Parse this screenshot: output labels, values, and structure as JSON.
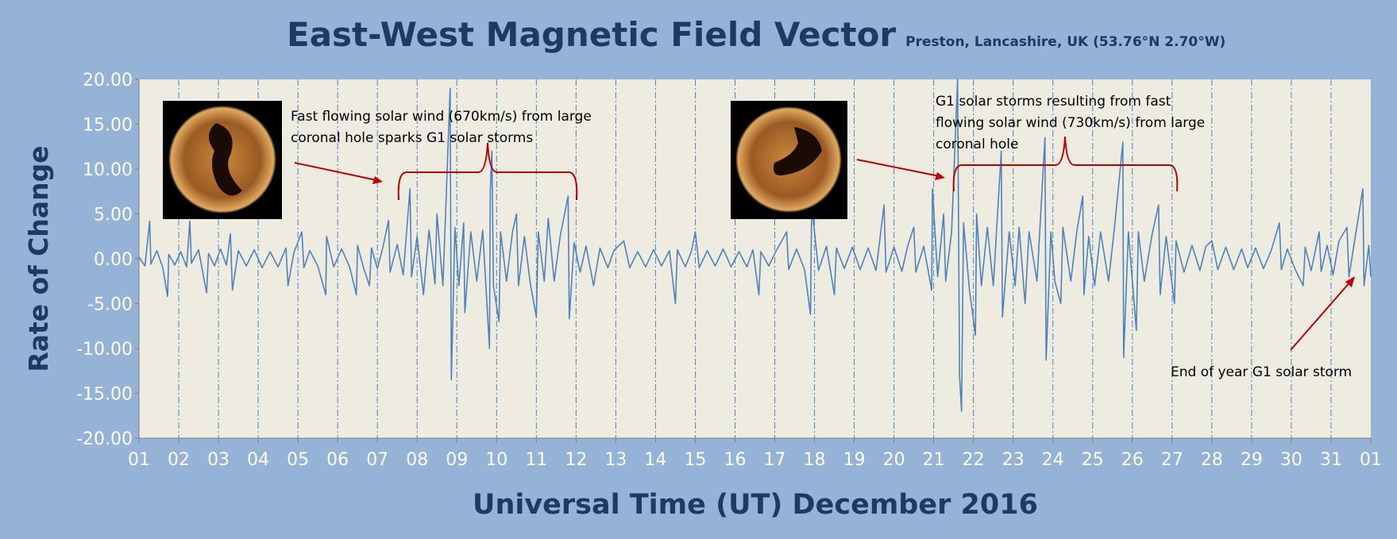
{
  "chart_data": {
    "type": "line",
    "title": "East-West Magnetic Field Vector",
    "subtitle": "Preston, Lancashire, UK  (53.76°N 2.70°W)",
    "x_label": "Universal Time (UT) December 2016",
    "y_label": "Rate of Change",
    "grid": true,
    "xlim": [
      1,
      32
    ],
    "ylim": [
      -20,
      20
    ],
    "xticks": [
      {
        "value": 1,
        "label": "01"
      },
      {
        "value": 2,
        "label": "02"
      },
      {
        "value": 3,
        "label": "03"
      },
      {
        "value": 4,
        "label": "04"
      },
      {
        "value": 5,
        "label": "05"
      },
      {
        "value": 6,
        "label": "06"
      },
      {
        "value": 7,
        "label": "07"
      },
      {
        "value": 8,
        "label": "08"
      },
      {
        "value": 9,
        "label": "09"
      },
      {
        "value": 10,
        "label": "10"
      },
      {
        "value": 11,
        "label": "11"
      },
      {
        "value": 12,
        "label": "12"
      },
      {
        "value": 13,
        "label": "13"
      },
      {
        "value": 14,
        "label": "14"
      },
      {
        "value": 15,
        "label": "15"
      },
      {
        "value": 16,
        "label": "16"
      },
      {
        "value": 17,
        "label": "17"
      },
      {
        "value": 18,
        "label": "18"
      },
      {
        "value": 19,
        "label": "19"
      },
      {
        "value": 20,
        "label": "20"
      },
      {
        "value": 21,
        "label": "21"
      },
      {
        "value": 22,
        "label": "22"
      },
      {
        "value": 23,
        "label": "23"
      },
      {
        "value": 24,
        "label": "24"
      },
      {
        "value": 25,
        "label": "25"
      },
      {
        "value": 26,
        "label": "26"
      },
      {
        "value": 27,
        "label": "27"
      },
      {
        "value": 28,
        "label": "28"
      },
      {
        "value": 29,
        "label": "29"
      },
      {
        "value": 30,
        "label": "30"
      },
      {
        "value": 31,
        "label": "31"
      },
      {
        "value": 32,
        "label": "01"
      }
    ],
    "yticks": [
      {
        "value": 20,
        "label": "20.00"
      },
      {
        "value": 15,
        "label": "15.00"
      },
      {
        "value": 10,
        "label": "10.00"
      },
      {
        "value": 5,
        "label": "5.00"
      },
      {
        "value": 0,
        "label": "0.00"
      },
      {
        "value": -5,
        "label": "-5.00"
      },
      {
        "value": -10,
        "label": "-10.00"
      },
      {
        "value": -15,
        "label": "-15.00"
      },
      {
        "value": -20,
        "label": "-20.00"
      }
    ],
    "color": "#4f81bd",
    "x": [
      1.0,
      1.15,
      1.27,
      1.3,
      1.45,
      1.6,
      1.72,
      1.75,
      1.9,
      2.05,
      2.2,
      2.28,
      2.32,
      2.5,
      2.7,
      2.75,
      2.9,
      3.05,
      3.2,
      3.3,
      3.35,
      3.5,
      3.7,
      3.9,
      4.1,
      4.3,
      4.5,
      4.7,
      4.75,
      4.9,
      5.1,
      5.15,
      5.3,
      5.5,
      5.7,
      5.72,
      5.9,
      6.1,
      6.3,
      6.47,
      6.5,
      6.65,
      6.8,
      6.85,
      7.0,
      7.15,
      7.28,
      7.32,
      7.5,
      7.65,
      7.82,
      7.86,
      8.0,
      8.16,
      8.3,
      8.45,
      8.5,
      8.65,
      8.83,
      8.86,
      8.95,
      9.05,
      9.17,
      9.2,
      9.35,
      9.5,
      9.65,
      9.82,
      9.84,
      9.88,
      9.92,
      10.06,
      10.1,
      10.25,
      10.4,
      10.5,
      10.55,
      10.7,
      10.85,
      11.0,
      11.05,
      11.2,
      11.3,
      11.45,
      11.6,
      11.8,
      11.83,
      11.95,
      12.1,
      12.25,
      12.44,
      12.6,
      12.8,
      12.95,
      13.2,
      13.35,
      13.55,
      13.75,
      13.95,
      14.15,
      14.35,
      14.5,
      14.55,
      14.75,
      14.9,
      15.0,
      15.1,
      15.3,
      15.5,
      15.7,
      15.9,
      16.1,
      16.3,
      16.45,
      16.6,
      16.65,
      16.85,
      17.05,
      17.3,
      17.35,
      17.55,
      17.75,
      17.9,
      17.93,
      18.1,
      18.3,
      18.5,
      18.55,
      18.75,
      18.95,
      19.15,
      19.35,
      19.55,
      19.75,
      19.8,
      20.0,
      20.2,
      20.35,
      20.5,
      20.55,
      20.75,
      20.95,
      20.97,
      21.1,
      21.25,
      21.3,
      21.45,
      21.6,
      21.65,
      21.7,
      21.75,
      21.9,
      22.05,
      22.08,
      22.2,
      22.35,
      22.5,
      22.7,
      22.73,
      22.9,
      23.05,
      23.15,
      23.3,
      23.4,
      23.6,
      23.8,
      23.83,
      23.95,
      24.05,
      24.2,
      24.25,
      24.45,
      24.6,
      24.75,
      24.78,
      24.9,
      25.05,
      25.2,
      25.4,
      25.55,
      25.76,
      25.78,
      25.9,
      26.1,
      26.15,
      26.3,
      26.5,
      26.66,
      26.7,
      26.85,
      27.06,
      27.1,
      27.3,
      27.5,
      27.7,
      27.85,
      28.0,
      28.15,
      28.35,
      28.55,
      28.75,
      28.9,
      29.1,
      29.3,
      29.5,
      29.7,
      29.75,
      29.9,
      30.1,
      30.3,
      30.35,
      30.5,
      30.7,
      30.75,
      30.9,
      31.05,
      31.2,
      31.4,
      31.45,
      31.6,
      31.8,
      31.83,
      31.95,
      32.0
    ],
    "values": [
      0.2,
      -0.8,
      4.2,
      -0.6,
      0.9,
      -1.0,
      -4.2,
      0.5,
      -0.7,
      0.8,
      -0.9,
      4.2,
      -0.5,
      1.0,
      -3.8,
      0.6,
      -0.8,
      1.1,
      -0.7,
      2.8,
      -3.5,
      0.9,
      -0.8,
      1.0,
      -1.0,
      0.8,
      -0.9,
      1.2,
      -3.0,
      0.7,
      3.0,
      -1.0,
      0.9,
      -0.8,
      -4.0,
      2.5,
      -0.9,
      1.1,
      -0.9,
      -4.0,
      1.5,
      -1.0,
      -3.0,
      1.2,
      -1.1,
      1.5,
      4.3,
      -1.5,
      1.6,
      -1.8,
      7.8,
      -2.0,
      2.5,
      -4.0,
      3.2,
      -2.8,
      5.0,
      -3.0,
      19.0,
      -13.5,
      3.5,
      -3.0,
      4.0,
      -6.0,
      3.0,
      -2.5,
      3.2,
      -10.0,
      7.5,
      12.0,
      -3.0,
      -7.0,
      3.0,
      -2.5,
      3.0,
      5.0,
      -3.0,
      2.5,
      -2.8,
      -6.5,
      3.0,
      -2.5,
      4.5,
      -2.5,
      2.5,
      7.0,
      -6.7,
      1.8,
      -1.5,
      1.4,
      -3.0,
      1.2,
      -1.0,
      0.9,
      2.0,
      -1.0,
      0.8,
      -0.9,
      1.0,
      -0.8,
      0.9,
      -5.0,
      1.0,
      -0.9,
      0.8,
      3.0,
      -1.0,
      0.9,
      -0.8,
      1.1,
      -0.9,
      0.8,
      -0.9,
      1.0,
      -4.0,
      0.8,
      -0.8,
      1.0,
      3.0,
      -1.2,
      1.1,
      -1.2,
      -6.2,
      6.0,
      -1.3,
      1.4,
      -4.0,
      1.2,
      -1.1,
      1.3,
      -1.2,
      1.2,
      -1.3,
      6.0,
      -1.5,
      1.3,
      -1.4,
      1.5,
      3.5,
      -1.5,
      1.4,
      -3.5,
      7.8,
      -2.0,
      5.0,
      -2.5,
      3.0,
      20.0,
      -13.0,
      -17.0,
      4.0,
      -3.5,
      -8.5,
      5.0,
      -3.0,
      3.5,
      -3.0,
      12.0,
      -6.5,
      3.0,
      -3.0,
      3.5,
      -5.0,
      3.0,
      -2.5,
      13.5,
      -11.3,
      3.0,
      -2.5,
      -5.0,
      3.5,
      -2.5,
      3.0,
      7.0,
      -4.0,
      2.5,
      -3.0,
      3.0,
      -2.5,
      3.5,
      13.0,
      -11.0,
      3.0,
      -8.0,
      3.0,
      -2.5,
      2.8,
      6.0,
      -4.0,
      2.5,
      -5.0,
      2.0,
      -1.5,
      1.5,
      -1.3,
      1.4,
      2.0,
      -1.2,
      1.3,
      -1.2,
      1.1,
      -1.0,
      1.2,
      -1.1,
      1.0,
      4.0,
      -1.2,
      1.1,
      -1.2,
      -3.0,
      1.3,
      -1.3,
      3.0,
      -1.4,
      1.5,
      -1.8,
      2.0,
      3.5,
      -2.0,
      2.2,
      7.8,
      -3.0,
      1.5,
      -2.0
    ],
    "annotations": [
      {
        "lines": [
          "Fast flowing solar wind (670km/s) from large",
          "coronal hole sparks G1 solar storms"
        ]
      },
      {
        "lines": [
          "G1 solar storms resulting from fast",
          "flowing solar wind (730km/s) from large",
          "coronal hole"
        ]
      },
      {
        "lines": [
          "End of year G1 solar storm"
        ]
      }
    ]
  }
}
